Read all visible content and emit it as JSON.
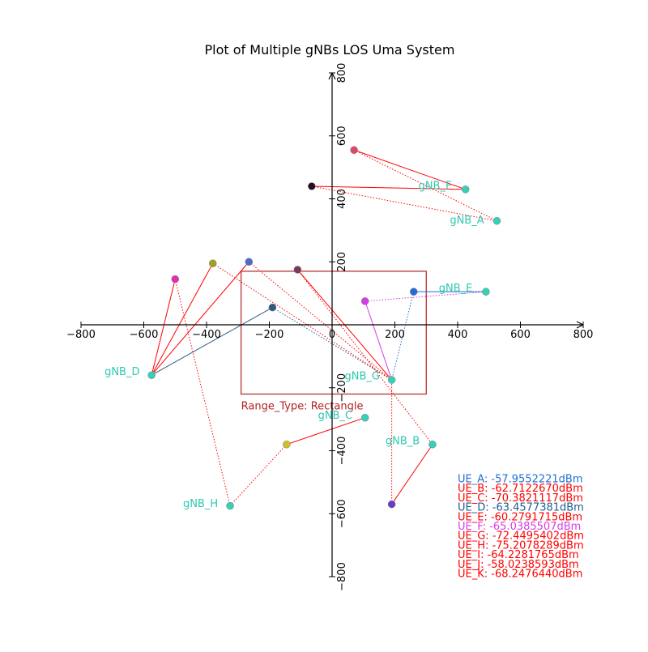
{
  "chart_data": {
    "type": "scatter",
    "title": "Plot of Multiple gNBs LOS Uma System",
    "xlim": [
      -800,
      800
    ],
    "ylim": [
      -800,
      800
    ],
    "x_ticks": [
      -800,
      -600,
      -400,
      -200,
      0,
      200,
      400,
      600,
      800
    ],
    "y_ticks": [
      -800,
      -600,
      -400,
      -200,
      200,
      400,
      600,
      800
    ],
    "range": {
      "label": "Range_Type: Rectangle",
      "x": [
        -290,
        300
      ],
      "y": [
        -220,
        170
      ],
      "color": "#b22222"
    },
    "gnbs": [
      {
        "name": "gNB_A",
        "x": 525,
        "y": 330,
        "label_x": 375,
        "label_y": 330
      },
      {
        "name": "gNB_B",
        "x": 320,
        "y": -380,
        "label_x": 170,
        "label_y": -370
      },
      {
        "name": "gNB_C",
        "x": 105,
        "y": -295,
        "label_x": -45,
        "label_y": -290
      },
      {
        "name": "gNB_D",
        "x": -575,
        "y": -160,
        "label_x": -725,
        "label_y": -150
      },
      {
        "name": "gNB_E",
        "x": 490,
        "y": 105,
        "label_x": 340,
        "label_y": 115
      },
      {
        "name": "gNB_F",
        "x": 425,
        "y": 430,
        "label_x": 275,
        "label_y": 440
      },
      {
        "name": "gNB_G",
        "x": 190,
        "y": -175,
        "label_x": 40,
        "label_y": -165
      },
      {
        "name": "gNB_H",
        "x": -325,
        "y": -575,
        "label_x": -475,
        "label_y": -570
      }
    ],
    "ues": [
      {
        "name": "UE_A",
        "x": 260,
        "y": 105,
        "color": "#1f6fd8",
        "serving": "gNB_E",
        "interferers": [
          "gNB_G"
        ],
        "legend": "UE_A: -57.9552221dBm"
      },
      {
        "name": "UE_B",
        "x": 190,
        "y": -570,
        "color": "#6a3bc9",
        "serving": "gNB_B",
        "interferers": [
          "gNB_G"
        ],
        "legend": "UE_B: -62.7122670dBm"
      },
      {
        "name": "UE_C",
        "x": 70,
        "y": 555,
        "color": "#e0456c",
        "serving": "gNB_F",
        "interferers": [
          "gNB_A"
        ],
        "legend": "UE_C: -70.3821117dBm"
      },
      {
        "name": "UE_D",
        "x": -190,
        "y": 55,
        "color": "#2f5a86",
        "serving": "gNB_D",
        "interferers": [
          "gNB_G"
        ],
        "legend": "UE_D: -63.4577381dBm"
      },
      {
        "name": "UE_E",
        "x": -500,
        "y": 145,
        "color": "#e22fb2",
        "serving": "gNB_D",
        "interferers": [
          "gNB_H"
        ],
        "legend": "UE_E: -60.2791715dBm"
      },
      {
        "name": "UE_F",
        "x": 105,
        "y": 75,
        "color": "#d53de8",
        "serving": "gNB_G",
        "interferers": [
          "gNB_E"
        ],
        "legend": "UE_F: -65.0385507dBm"
      },
      {
        "name": "UE_G",
        "x": -380,
        "y": 195,
        "color": "#9aa51d",
        "serving": "gNB_D",
        "interferers": [
          "gNB_G"
        ],
        "legend": "UE_G: -72.4495402dBm"
      },
      {
        "name": "UE_H",
        "x": -265,
        "y": 200,
        "color": "#4a6ad0",
        "serving": "gNB_D",
        "interferers": [
          "gNB_G"
        ],
        "legend": "UE_H: -75.2078289dBm"
      },
      {
        "name": "UE_I",
        "x": -110,
        "y": 175,
        "color": "#7a3a5a",
        "serving": "gNB_G",
        "interferers": [
          "gNB_B"
        ],
        "legend": "UE_I: -64.2281765dBm"
      },
      {
        "name": "UE_J",
        "x": -65,
        "y": 440,
        "color": "#2a0d26",
        "serving": "gNB_F",
        "interferers": [
          "gNB_A"
        ],
        "legend": "UE_J: -58.0238593dBm"
      },
      {
        "name": "UE_K",
        "x": -145,
        "y": -380,
        "color": "#c9c22a",
        "serving": "gNB_C",
        "interferers": [
          "gNB_H"
        ],
        "legend": "UE_K: -68.2476440dBm"
      }
    ],
    "gnb_color": "#36d0b8",
    "label_color": "#2ec8b0",
    "legend_colors": [
      "#1f6fd8",
      "#ff0000",
      "#ff0000",
      "#1f5a8f",
      "#ff0000",
      "#d53de8",
      "#ff0000",
      "#ff0000",
      "#ff0000",
      "#ff0000",
      "#ff0000"
    ],
    "line_colors": {
      "UE_A": "#1f6fd8",
      "UE_D": "#2f5a86",
      "UE_F": "#d53de8",
      "default": "#ff0000"
    },
    "legend_placement": "bottom-right",
    "grid": false
  }
}
